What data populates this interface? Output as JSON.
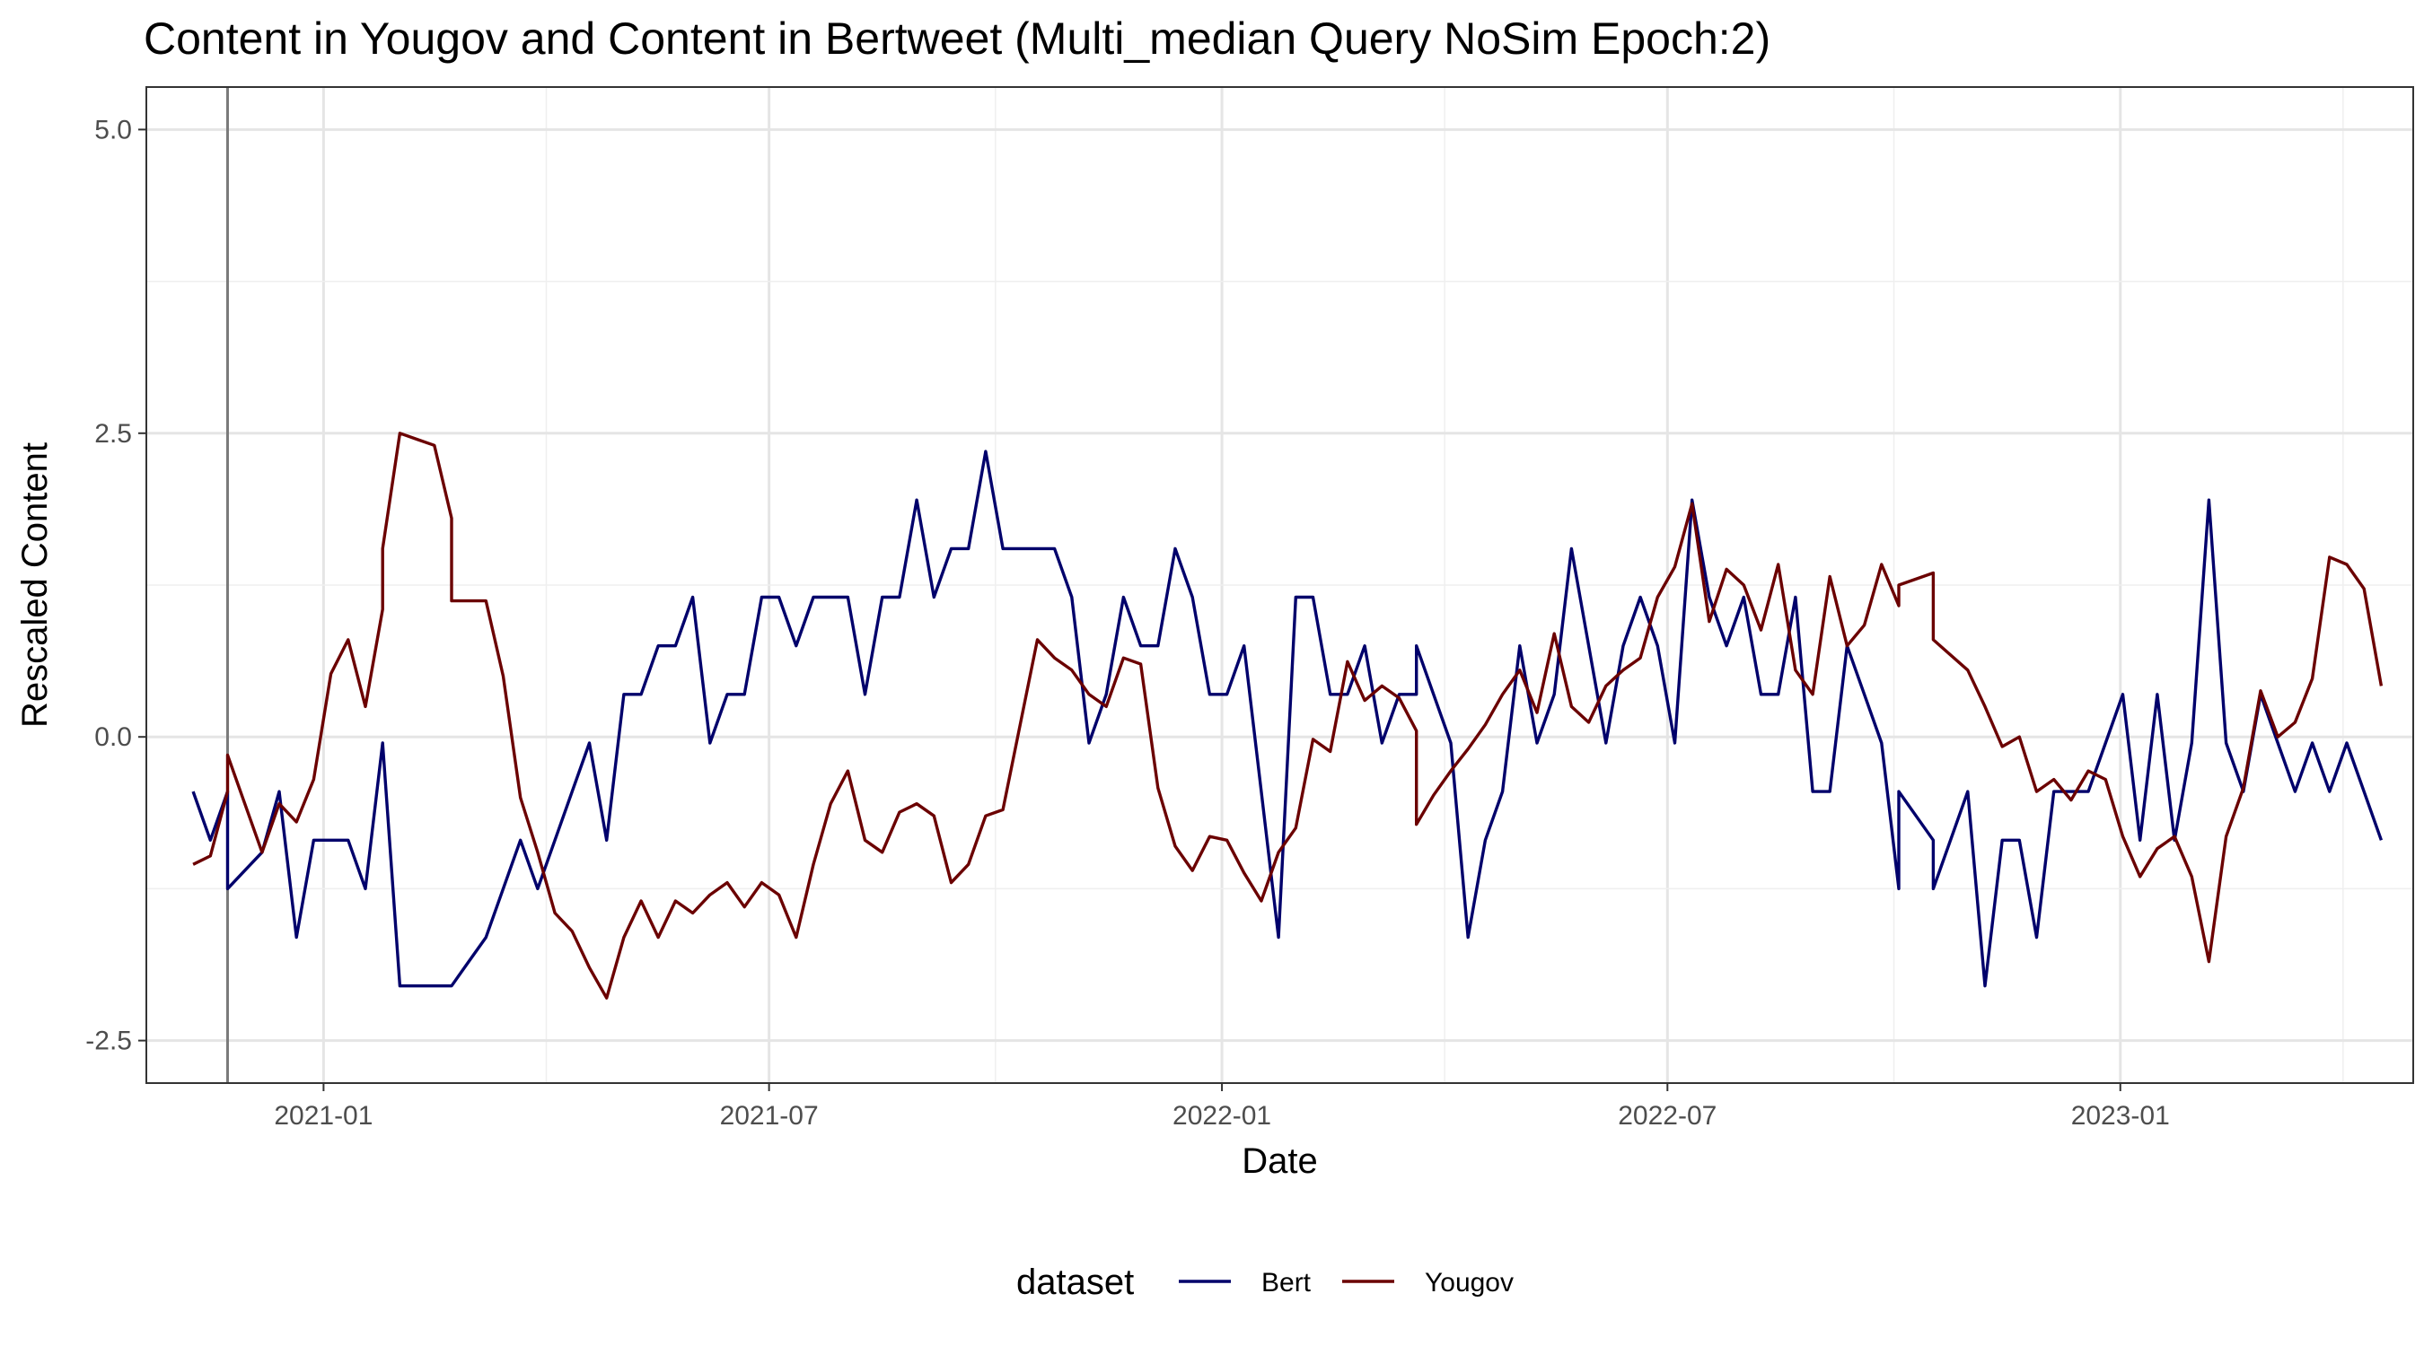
{
  "chart_data": {
    "type": "line",
    "title": "Content in Yougov and Content in Bertweet (Multi_median Query NoSim Epoch:2)",
    "xlabel": "Date",
    "ylabel": "Rescaled  Content",
    "x_ticks": [
      "2021-01",
      "2021-07",
      "2022-01",
      "2022-07",
      "2023-01"
    ],
    "y_ticks": [
      -2.5,
      0.0,
      2.5,
      5.0
    ],
    "y_tick_labels": [
      "-2.5",
      "0.0",
      "2.5",
      "5.0"
    ],
    "xlim": [
      "2020-10-21",
      "2023-04-30"
    ],
    "ylim": [
      -2.85,
      5.35
    ],
    "grid": true,
    "vline": "2020-11-23",
    "legend": {
      "title": "dataset",
      "position": "bottom"
    },
    "series": [
      {
        "name": "Bert",
        "color": "#00006B",
        "points": [
          [
            "2020-11-09",
            -0.45
          ],
          [
            "2020-11-16",
            -0.85
          ],
          [
            "2020-11-23",
            -0.45
          ],
          [
            "2020-11-23",
            -1.25
          ],
          [
            "2020-11-30",
            -1.1
          ],
          [
            "2020-12-07",
            -0.95
          ],
          [
            "2020-12-14",
            -0.45
          ],
          [
            "2020-12-21",
            -1.65
          ],
          [
            "2020-12-28",
            -0.85
          ],
          [
            "2021-01-04",
            -0.85
          ],
          [
            "2021-01-11",
            -0.85
          ],
          [
            "2021-01-18",
            -1.25
          ],
          [
            "2021-01-25",
            -0.05
          ],
          [
            "2021-02-01",
            -2.05
          ],
          [
            "2021-02-08",
            -2.05
          ],
          [
            "2021-02-15",
            -2.05
          ],
          [
            "2021-02-22",
            -2.05
          ],
          [
            "2021-03-01",
            -1.85
          ],
          [
            "2021-03-08",
            -1.65
          ],
          [
            "2021-03-15",
            -1.25
          ],
          [
            "2021-03-22",
            -0.85
          ],
          [
            "2021-03-29",
            -1.25
          ],
          [
            "2021-04-05",
            -0.85
          ],
          [
            "2021-04-12",
            -0.45
          ],
          [
            "2021-04-19",
            -0.05
          ],
          [
            "2021-04-26",
            -0.85
          ],
          [
            "2021-05-03",
            0.35
          ],
          [
            "2021-05-10",
            0.35
          ],
          [
            "2021-05-17",
            0.75
          ],
          [
            "2021-05-24",
            0.75
          ],
          [
            "2021-05-31",
            1.15
          ],
          [
            "2021-06-07",
            -0.05
          ],
          [
            "2021-06-14",
            0.35
          ],
          [
            "2021-06-21",
            0.35
          ],
          [
            "2021-06-28",
            1.15
          ],
          [
            "2021-07-05",
            1.15
          ],
          [
            "2021-07-12",
            0.75
          ],
          [
            "2021-07-19",
            1.15
          ],
          [
            "2021-07-26",
            1.15
          ],
          [
            "2021-08-02",
            1.15
          ],
          [
            "2021-08-09",
            0.35
          ],
          [
            "2021-08-16",
            1.15
          ],
          [
            "2021-08-23",
            1.15
          ],
          [
            "2021-08-30",
            1.95
          ],
          [
            "2021-09-06",
            1.15
          ],
          [
            "2021-09-13",
            1.55
          ],
          [
            "2021-09-20",
            1.55
          ],
          [
            "2021-09-27",
            2.35
          ],
          [
            "2021-10-04",
            1.55
          ],
          [
            "2021-10-11",
            1.55
          ],
          [
            "2021-10-18",
            1.55
          ],
          [
            "2021-10-25",
            1.55
          ],
          [
            "2021-11-01",
            1.15
          ],
          [
            "2021-11-08",
            -0.05
          ],
          [
            "2021-11-15",
            0.35
          ],
          [
            "2021-11-22",
            1.15
          ],
          [
            "2021-11-29",
            0.75
          ],
          [
            "2021-12-06",
            0.75
          ],
          [
            "2021-12-13",
            1.55
          ],
          [
            "2021-12-20",
            1.15
          ],
          [
            "2021-12-27",
            0.35
          ],
          [
            "2022-01-03",
            0.35
          ],
          [
            "2022-01-10",
            0.75
          ],
          [
            "2022-01-17",
            -0.45
          ],
          [
            "2022-01-24",
            -1.65
          ],
          [
            "2022-01-31",
            1.15
          ],
          [
            "2022-02-07",
            1.15
          ],
          [
            "2022-02-14",
            0.35
          ],
          [
            "2022-02-21",
            0.35
          ],
          [
            "2022-02-28",
            0.75
          ],
          [
            "2022-03-07",
            -0.05
          ],
          [
            "2022-03-14",
            0.35
          ],
          [
            "2022-03-21",
            0.35
          ],
          [
            "2022-03-21",
            0.75
          ],
          [
            "2022-03-28",
            0.35
          ],
          [
            "2022-04-04",
            -0.05
          ],
          [
            "2022-04-11",
            -1.65
          ],
          [
            "2022-04-18",
            -0.85
          ],
          [
            "2022-04-25",
            -0.45
          ],
          [
            "2022-05-02",
            0.75
          ],
          [
            "2022-05-09",
            -0.05
          ],
          [
            "2022-05-16",
            0.35
          ],
          [
            "2022-05-23",
            1.55
          ],
          [
            "2022-05-30",
            0.75
          ],
          [
            "2022-06-06",
            -0.05
          ],
          [
            "2022-06-13",
            0.75
          ],
          [
            "2022-06-20",
            1.15
          ],
          [
            "2022-06-27",
            0.75
          ],
          [
            "2022-07-04",
            -0.05
          ],
          [
            "2022-07-11",
            1.95
          ],
          [
            "2022-07-18",
            1.15
          ],
          [
            "2022-07-25",
            0.75
          ],
          [
            "2022-08-01",
            1.15
          ],
          [
            "2022-08-08",
            0.35
          ],
          [
            "2022-08-15",
            0.35
          ],
          [
            "2022-08-22",
            1.15
          ],
          [
            "2022-08-29",
            -0.45
          ],
          [
            "2022-09-05",
            -0.45
          ],
          [
            "2022-09-12",
            0.75
          ],
          [
            "2022-09-19",
            0.35
          ],
          [
            "2022-09-26",
            -0.05
          ],
          [
            "2022-10-03",
            -1.25
          ],
          [
            "2022-10-03",
            -0.45
          ],
          [
            "2022-10-17",
            -0.85
          ],
          [
            "2022-10-17",
            -1.25
          ],
          [
            "2022-10-31",
            -0.45
          ],
          [
            "2022-11-07",
            -2.05
          ],
          [
            "2022-11-14",
            -0.85
          ],
          [
            "2022-11-21",
            -0.85
          ],
          [
            "2022-11-28",
            -1.65
          ],
          [
            "2022-12-05",
            -0.45
          ],
          [
            "2022-12-12",
            -0.45
          ],
          [
            "2022-12-19",
            -0.45
          ],
          [
            "2022-12-26",
            -0.05
          ],
          [
            "2023-01-02",
            0.35
          ],
          [
            "2023-01-09",
            -0.85
          ],
          [
            "2023-01-16",
            0.35
          ],
          [
            "2023-01-23",
            -0.85
          ],
          [
            "2023-01-30",
            -0.05
          ],
          [
            "2023-02-06",
            1.95
          ],
          [
            "2023-02-13",
            -0.05
          ],
          [
            "2023-02-20",
            -0.45
          ],
          [
            "2023-02-27",
            0.35
          ],
          [
            "2023-03-06",
            -0.05
          ],
          [
            "2023-03-13",
            -0.45
          ],
          [
            "2023-03-20",
            -0.05
          ],
          [
            "2023-03-27",
            -0.45
          ],
          [
            "2023-04-03",
            -0.05
          ],
          [
            "2023-04-17",
            -0.85
          ]
        ]
      },
      {
        "name": "Yougov",
        "color": "#6B0000",
        "points": [
          [
            "2020-11-09",
            -1.05
          ],
          [
            "2020-11-16",
            -0.98
          ],
          [
            "2020-11-23",
            -0.45
          ],
          [
            "2020-11-23",
            -0.15
          ],
          [
            "2020-11-30",
            -0.55
          ],
          [
            "2020-12-07",
            -0.95
          ],
          [
            "2020-12-14",
            -0.55
          ],
          [
            "2020-12-21",
            -0.7
          ],
          [
            "2020-12-28",
            -0.35
          ],
          [
            "2021-01-04",
            0.52
          ],
          [
            "2021-01-11",
            0.8
          ],
          [
            "2021-01-18",
            0.25
          ],
          [
            "2021-01-25",
            1.05
          ],
          [
            "2021-01-25",
            1.55
          ],
          [
            "2021-02-01",
            2.5
          ],
          [
            "2021-02-08",
            2.45
          ],
          [
            "2021-02-15",
            2.4
          ],
          [
            "2021-02-22",
            1.8
          ],
          [
            "2021-02-22",
            1.12
          ],
          [
            "2021-03-01",
            1.12
          ],
          [
            "2021-03-08",
            1.12
          ],
          [
            "2021-03-15",
            0.5
          ],
          [
            "2021-03-22",
            -0.5
          ],
          [
            "2021-03-29",
            -0.95
          ],
          [
            "2021-04-05",
            -1.45
          ],
          [
            "2021-04-12",
            -1.6
          ],
          [
            "2021-04-19",
            -1.9
          ],
          [
            "2021-04-26",
            -2.15
          ],
          [
            "2021-05-03",
            -1.65
          ],
          [
            "2021-05-10",
            -1.35
          ],
          [
            "2021-05-17",
            -1.65
          ],
          [
            "2021-05-24",
            -1.35
          ],
          [
            "2021-05-31",
            -1.45
          ],
          [
            "2021-06-07",
            -1.3
          ],
          [
            "2021-06-14",
            -1.2
          ],
          [
            "2021-06-21",
            -1.4
          ],
          [
            "2021-06-28",
            -1.2
          ],
          [
            "2021-07-05",
            -1.3
          ],
          [
            "2021-07-12",
            -1.65
          ],
          [
            "2021-07-19",
            -1.05
          ],
          [
            "2021-07-26",
            -0.55
          ],
          [
            "2021-08-02",
            -0.28
          ],
          [
            "2021-08-09",
            -0.85
          ],
          [
            "2021-08-16",
            -0.95
          ],
          [
            "2021-08-23",
            -0.62
          ],
          [
            "2021-08-30",
            -0.55
          ],
          [
            "2021-09-06",
            -0.65
          ],
          [
            "2021-09-13",
            -1.2
          ],
          [
            "2021-09-20",
            -1.05
          ],
          [
            "2021-09-27",
            -0.65
          ],
          [
            "2021-10-04",
            -0.6
          ],
          [
            "2021-10-11",
            0.1
          ],
          [
            "2021-10-18",
            0.8
          ],
          [
            "2021-10-25",
            0.65
          ],
          [
            "2021-11-01",
            0.55
          ],
          [
            "2021-11-08",
            0.35
          ],
          [
            "2021-11-15",
            0.25
          ],
          [
            "2021-11-22",
            0.65
          ],
          [
            "2021-11-29",
            0.6
          ],
          [
            "2021-12-06",
            -0.42
          ],
          [
            "2021-12-13",
            -0.9
          ],
          [
            "2021-12-20",
            -1.1
          ],
          [
            "2021-12-27",
            -0.82
          ],
          [
            "2022-01-03",
            -0.85
          ],
          [
            "2022-01-10",
            -1.12
          ],
          [
            "2022-01-17",
            -1.35
          ],
          [
            "2022-01-24",
            -0.95
          ],
          [
            "2022-01-31",
            -0.75
          ],
          [
            "2022-02-07",
            -0.02
          ],
          [
            "2022-02-14",
            -0.12
          ],
          [
            "2022-02-21",
            0.62
          ],
          [
            "2022-02-28",
            0.3
          ],
          [
            "2022-03-07",
            0.42
          ],
          [
            "2022-03-14",
            0.32
          ],
          [
            "2022-03-21",
            0.05
          ],
          [
            "2022-03-21",
            -0.72
          ],
          [
            "2022-03-28",
            -0.48
          ],
          [
            "2022-04-04",
            -0.28
          ],
          [
            "2022-04-11",
            -0.1
          ],
          [
            "2022-04-18",
            0.1
          ],
          [
            "2022-04-25",
            0.35
          ],
          [
            "2022-05-02",
            0.55
          ],
          [
            "2022-05-09",
            0.2
          ],
          [
            "2022-05-16",
            0.85
          ],
          [
            "2022-05-23",
            0.25
          ],
          [
            "2022-05-30",
            0.12
          ],
          [
            "2022-06-06",
            0.42
          ],
          [
            "2022-06-13",
            0.55
          ],
          [
            "2022-06-20",
            0.65
          ],
          [
            "2022-06-27",
            1.15
          ],
          [
            "2022-07-04",
            1.4
          ],
          [
            "2022-07-11",
            1.92
          ],
          [
            "2022-07-18",
            0.95
          ],
          [
            "2022-07-25",
            1.38
          ],
          [
            "2022-08-01",
            1.25
          ],
          [
            "2022-08-08",
            0.88
          ],
          [
            "2022-08-15",
            1.42
          ],
          [
            "2022-08-22",
            0.55
          ],
          [
            "2022-08-29",
            0.35
          ],
          [
            "2022-09-05",
            1.32
          ],
          [
            "2022-09-12",
            0.75
          ],
          [
            "2022-09-19",
            0.92
          ],
          [
            "2022-09-26",
            1.42
          ],
          [
            "2022-10-03",
            1.08
          ],
          [
            "2022-10-03",
            1.25
          ],
          [
            "2022-10-17",
            1.35
          ],
          [
            "2022-10-17",
            0.8
          ],
          [
            "2022-10-31",
            0.55
          ],
          [
            "2022-11-07",
            0.25
          ],
          [
            "2022-11-14",
            -0.08
          ],
          [
            "2022-11-21",
            0.0
          ],
          [
            "2022-11-28",
            -0.45
          ],
          [
            "2022-12-05",
            -0.35
          ],
          [
            "2022-12-12",
            -0.52
          ],
          [
            "2022-12-19",
            -0.28
          ],
          [
            "2022-12-26",
            -0.35
          ],
          [
            "2023-01-02",
            -0.82
          ],
          [
            "2023-01-09",
            -1.15
          ],
          [
            "2023-01-16",
            -0.92
          ],
          [
            "2023-01-23",
            -0.82
          ],
          [
            "2023-01-30",
            -1.15
          ],
          [
            "2023-02-06",
            -1.85
          ],
          [
            "2023-02-13",
            -0.82
          ],
          [
            "2023-02-20",
            -0.42
          ],
          [
            "2023-02-27",
            0.38
          ],
          [
            "2023-03-06",
            0.0
          ],
          [
            "2023-03-13",
            0.12
          ],
          [
            "2023-03-20",
            0.48
          ],
          [
            "2023-03-27",
            1.48
          ],
          [
            "2023-04-03",
            1.42
          ],
          [
            "2023-04-10",
            1.22
          ],
          [
            "2023-04-17",
            0.42
          ]
        ]
      }
    ]
  }
}
